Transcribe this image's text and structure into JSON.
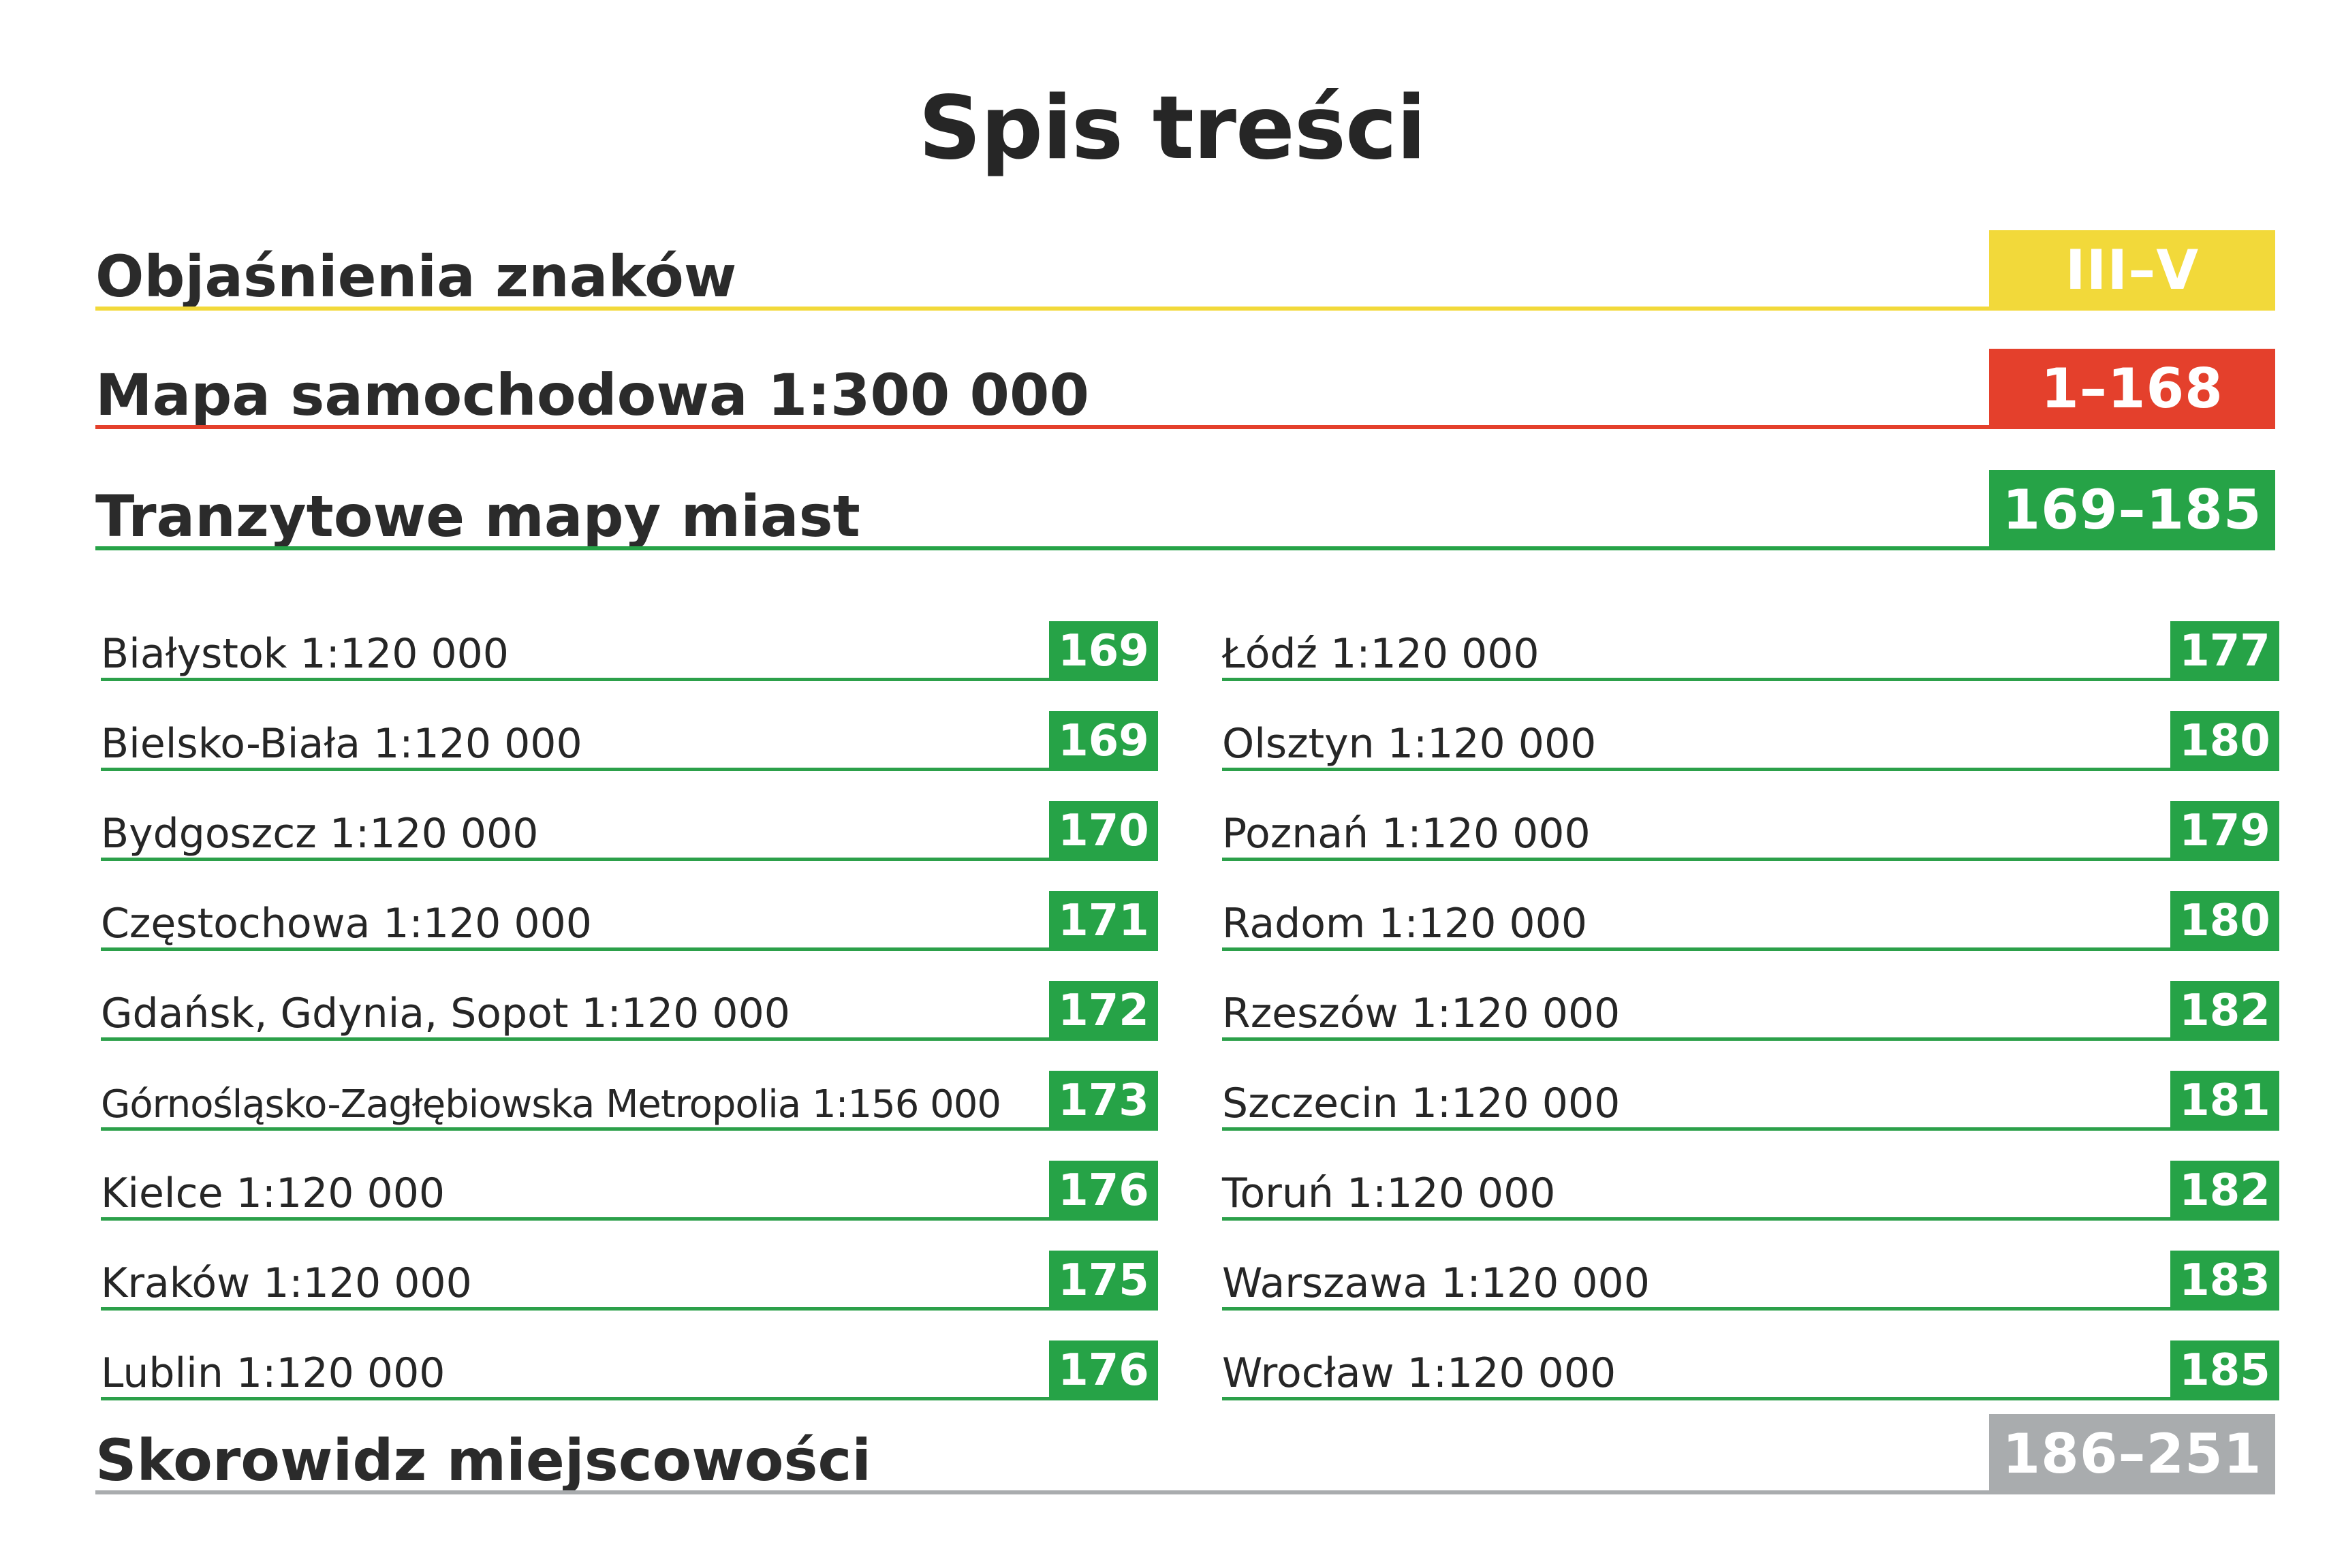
{
  "title": "Spis treści",
  "sections": [
    {
      "label": "Objaśnienia znaków",
      "pages": "III–V",
      "color": "#f2d93a"
    },
    {
      "label": "Mapa samochodowa  1:300 000",
      "pages": "1–168",
      "color": "#e4402c"
    },
    {
      "label": "Tranzytowe mapy miast",
      "pages": "169–185",
      "color": "#26a347"
    }
  ],
  "cities_left": [
    {
      "label": "Białystok  1:120 000",
      "page": "169"
    },
    {
      "label": "Bielsko-Biała  1:120 000",
      "page": "169"
    },
    {
      "label": "Bydgoszcz  1:120 000",
      "page": "170"
    },
    {
      "label": "Częstochowa  1:120 000",
      "page": "171"
    },
    {
      "label": "Gdańsk, Gdynia, Sopot  1:120 000",
      "page": "172"
    },
    {
      "label": "Górnośląsko-Zagłębiowska Metropolia  1:156 000",
      "page": "173"
    },
    {
      "label": "Kielce  1:120 000",
      "page": "176"
    },
    {
      "label": "Kraków  1:120 000",
      "page": "175"
    },
    {
      "label": "Lublin  1:120 000",
      "page": "176"
    }
  ],
  "cities_right": [
    {
      "label": "Łódź  1:120 000",
      "page": "177"
    },
    {
      "label": "Olsztyn  1:120 000",
      "page": "180"
    },
    {
      "label": "Poznań  1:120 000",
      "page": "179"
    },
    {
      "label": "Radom  1:120 000",
      "page": "180"
    },
    {
      "label": "Rzeszów  1:120 000",
      "page": "182"
    },
    {
      "label": "Szczecin  1:120 000",
      "page": "181"
    },
    {
      "label": "Toruń  1:120 000",
      "page": "182"
    },
    {
      "label": "Warszawa  1:120 000",
      "page": "183"
    },
    {
      "label": "Wrocław  1:120 000",
      "page": "185"
    }
  ],
  "index_section": {
    "label": "Skorowidz miejscowości",
    "pages": "186–251",
    "color": "#a9acae"
  }
}
